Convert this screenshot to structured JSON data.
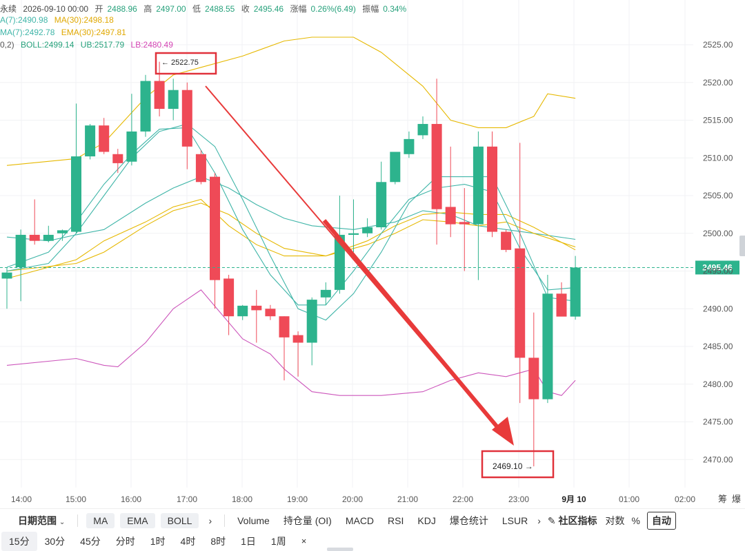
{
  "info": {
    "title": "永续",
    "date": "2026-09-10 00:00",
    "open_label": "开",
    "open": "2488.96",
    "high_label": "高",
    "high": "2497.00",
    "low_label": "低",
    "low": "2488.55",
    "close_label": "收",
    "close": "2495.46",
    "change_label": "涨幅",
    "change": "0.26%(6.49)",
    "amp_label": "振幅",
    "amp": "0.34%",
    "ma7": "A(7):2490.98",
    "ma30": "MA(30):2498.18",
    "ema7": "MA(7):2492.78",
    "ema30": "EMA(30):2497.81",
    "boll_prefix": "0,2)",
    "boll": "BOLL:2499.14",
    "ub": "UB:2517.79",
    "lb": "LB:2480.49"
  },
  "annotations": {
    "high": "← 2522.75",
    "low": "2469.10 →"
  },
  "current_price": "2495.46",
  "chart_data": {
    "type": "candlestick",
    "y_range": [
      2466,
      2528
    ],
    "y_ticks": [
      "2525.00",
      "2520.00",
      "2515.00",
      "2510.00",
      "2505.00",
      "2500.00",
      "2495.00",
      "2490.00",
      "2485.00",
      "2480.00",
      "2475.00",
      "2470.00"
    ],
    "x_ticks": [
      "14:00",
      "15:00",
      "16:00",
      "17:00",
      "18:00",
      "19:00",
      "20:00",
      "21:00",
      "22:00",
      "23:00",
      "9月 10",
      "01:00",
      "02:00"
    ],
    "candles": [
      {
        "t": "13:45",
        "o": 2494.0,
        "h": 2495.5,
        "l": 2490.0,
        "c": 2494.8
      },
      {
        "t": "14:00",
        "o": 2495.5,
        "h": 2500.5,
        "l": 2491.0,
        "c": 2499.8
      },
      {
        "t": "14:15",
        "o": 2499.8,
        "h": 2504.5,
        "l": 2498.5,
        "c": 2499.0
      },
      {
        "t": "14:30",
        "o": 2499.0,
        "h": 2501.0,
        "l": 2498.8,
        "c": 2499.8
      },
      {
        "t": "14:45",
        "o": 2500.0,
        "h": 2500.5,
        "l": 2499.0,
        "c": 2500.4
      },
      {
        "t": "15:00",
        "o": 2500.2,
        "h": 2517.2,
        "l": 2500.0,
        "c": 2510.2
      },
      {
        "t": "15:15",
        "o": 2510.2,
        "h": 2514.5,
        "l": 2509.8,
        "c": 2514.3
      },
      {
        "t": "15:30",
        "o": 2514.3,
        "h": 2515.3,
        "l": 2510.5,
        "c": 2510.8
      },
      {
        "t": "15:45",
        "o": 2510.5,
        "h": 2511.2,
        "l": 2508.0,
        "c": 2509.3
      },
      {
        "t": "16:00",
        "o": 2509.5,
        "h": 2518.5,
        "l": 2509.0,
        "c": 2513.5
      },
      {
        "t": "16:15",
        "o": 2513.5,
        "h": 2521.0,
        "l": 2512.8,
        "c": 2520.2
      },
      {
        "t": "16:30",
        "o": 2520.2,
        "h": 2522.75,
        "l": 2515.5,
        "c": 2516.5
      },
      {
        "t": "16:45",
        "o": 2516.5,
        "h": 2520.5,
        "l": 2515.0,
        "c": 2519.0
      },
      {
        "t": "17:00",
        "o": 2519.0,
        "h": 2520.0,
        "l": 2508.5,
        "c": 2511.5
      },
      {
        "t": "17:15",
        "o": 2510.5,
        "h": 2511.0,
        "l": 2506.5,
        "c": 2506.8
      },
      {
        "t": "17:30",
        "o": 2507.5,
        "h": 2508.0,
        "l": 2490.0,
        "c": 2493.8
      },
      {
        "t": "17:45",
        "o": 2494.0,
        "h": 2494.5,
        "l": 2486.5,
        "c": 2489.0
      },
      {
        "t": "18:00",
        "o": 2489.0,
        "h": 2490.5,
        "l": 2488.5,
        "c": 2490.4
      },
      {
        "t": "18:15",
        "o": 2490.4,
        "h": 2492.5,
        "l": 2485.5,
        "c": 2489.8
      },
      {
        "t": "18:30",
        "o": 2490.0,
        "h": 2490.5,
        "l": 2488.5,
        "c": 2489.0
      },
      {
        "t": "18:45",
        "o": 2489.0,
        "h": 2489.0,
        "l": 2480.5,
        "c": 2486.2
      },
      {
        "t": "19:00",
        "o": 2486.5,
        "h": 2487.0,
        "l": 2481.0,
        "c": 2485.5
      },
      {
        "t": "19:15",
        "o": 2485.5,
        "h": 2491.5,
        "l": 2482.5,
        "c": 2491.2
      },
      {
        "t": "19:30",
        "o": 2491.5,
        "h": 2493.5,
        "l": 2490.5,
        "c": 2492.5
      },
      {
        "t": "19:45",
        "o": 2492.5,
        "h": 2505.0,
        "l": 2492.0,
        "c": 2499.8
      },
      {
        "t": "20:00",
        "o": 2499.8,
        "h": 2504.5,
        "l": 2497.5,
        "c": 2500.0
      },
      {
        "t": "20:15",
        "o": 2500.0,
        "h": 2502.0,
        "l": 2499.5,
        "c": 2500.8
      },
      {
        "t": "20:30",
        "o": 2500.8,
        "h": 2509.5,
        "l": 2500.5,
        "c": 2506.8
      },
      {
        "t": "20:45",
        "o": 2506.8,
        "h": 2510.5,
        "l": 2506.5,
        "c": 2510.8
      },
      {
        "t": "21:00",
        "o": 2510.5,
        "h": 2513.5,
        "l": 2510.0,
        "c": 2512.5
      },
      {
        "t": "21:15",
        "o": 2513.0,
        "h": 2515.5,
        "l": 2512.5,
        "c": 2514.5
      },
      {
        "t": "21:30",
        "o": 2514.5,
        "h": 2520.5,
        "l": 2498.5,
        "c": 2503.2
      },
      {
        "t": "21:45",
        "o": 2503.5,
        "h": 2511.5,
        "l": 2499.5,
        "c": 2501.2
      },
      {
        "t": "22:00",
        "o": 2501.5,
        "h": 2506.0,
        "l": 2495.0,
        "c": 2501.2
      },
      {
        "t": "22:15",
        "o": 2501.2,
        "h": 2513.5,
        "l": 2493.8,
        "c": 2511.5
      },
      {
        "t": "22:30",
        "o": 2511.5,
        "h": 2513.5,
        "l": 2499.5,
        "c": 2500.2
      },
      {
        "t": "22:45",
        "o": 2500.2,
        "h": 2500.5,
        "l": 2497.5,
        "c": 2497.8
      },
      {
        "t": "23:00",
        "o": 2498.0,
        "h": 2512.0,
        "l": 2477.5,
        "c": 2483.5
      },
      {
        "t": "23:15",
        "o": 2483.5,
        "h": 2489.5,
        "l": 2469.1,
        "c": 2478.0
      },
      {
        "t": "23:30",
        "o": 2478.0,
        "h": 2494.5,
        "l": 2477.5,
        "c": 2492.0
      },
      {
        "t": "23:45",
        "o": 2492.0,
        "h": 2493.5,
        "l": 2489.0,
        "c": 2488.96
      },
      {
        "t": "00:00",
        "o": 2488.96,
        "h": 2497.0,
        "l": 2488.55,
        "c": 2495.46
      }
    ],
    "lines": {
      "ub": {
        "color": "#e6b800",
        "points": [
          [
            0,
            2509.0
          ],
          [
            5,
            2509.9
          ],
          [
            7,
            2512.0
          ],
          [
            10,
            2518.0
          ],
          [
            12,
            2521.0
          ],
          [
            14,
            2522.0
          ],
          [
            17,
            2523.5
          ],
          [
            20,
            2525.5
          ],
          [
            22,
            2526.0
          ],
          [
            25,
            2526.0
          ],
          [
            27,
            2524.0
          ],
          [
            30,
            2519.5
          ],
          [
            32,
            2515.0
          ],
          [
            34,
            2514.0
          ],
          [
            36,
            2514.0
          ],
          [
            38,
            2515.5
          ],
          [
            39,
            2518.5
          ],
          [
            41,
            2517.9
          ]
        ]
      },
      "lb": {
        "color": "#cc55bb",
        "points": [
          [
            0,
            2482.5
          ],
          [
            5,
            2483.4
          ],
          [
            7,
            2482.5
          ],
          [
            8,
            2482.3
          ],
          [
            10,
            2485.5
          ],
          [
            12,
            2490.0
          ],
          [
            14,
            2492.5
          ],
          [
            17,
            2486.0
          ],
          [
            19,
            2484.0
          ],
          [
            20,
            2482.0
          ],
          [
            22,
            2479.0
          ],
          [
            24,
            2478.5
          ],
          [
            27,
            2478.5
          ],
          [
            30,
            2479.0
          ],
          [
            32,
            2480.5
          ],
          [
            34,
            2481.5
          ],
          [
            36,
            2481.0
          ],
          [
            38,
            2482.0
          ],
          [
            39,
            2479.0
          ],
          [
            40,
            2478.5
          ],
          [
            41,
            2480.5
          ]
        ]
      },
      "boll": {
        "color": "#3fb5a8",
        "points": [
          [
            0,
            2499.5
          ],
          [
            3,
            2499.0
          ],
          [
            5,
            2499.8
          ],
          [
            7,
            2500.5
          ],
          [
            10,
            2504.0
          ],
          [
            12,
            2506.0
          ],
          [
            14,
            2507.5
          ],
          [
            16,
            2506.0
          ],
          [
            18,
            2503.8
          ],
          [
            20,
            2502.0
          ],
          [
            22,
            2501.0
          ],
          [
            25,
            2500.5
          ],
          [
            28,
            2501.5
          ],
          [
            30,
            2503.0
          ],
          [
            32,
            2502.5
          ],
          [
            34,
            2501.0
          ],
          [
            36,
            2500.5
          ],
          [
            38,
            2500.0
          ],
          [
            41,
            2499.2
          ]
        ]
      },
      "ma30": {
        "color": "#e6b800",
        "points": [
          [
            0,
            2495.0
          ],
          [
            5,
            2496.0
          ],
          [
            7,
            2497.5
          ],
          [
            10,
            2501.0
          ],
          [
            12,
            2503.0
          ],
          [
            14,
            2504.0
          ],
          [
            16,
            2502.5
          ],
          [
            18,
            2500.0
          ],
          [
            20,
            2498.0
          ],
          [
            23,
            2497.0
          ],
          [
            26,
            2498.5
          ],
          [
            28,
            2500.0
          ],
          [
            30,
            2501.8
          ],
          [
            32,
            2501.5
          ],
          [
            34,
            2501.0
          ],
          [
            36,
            2501.5
          ],
          [
            38,
            2500.0
          ],
          [
            41,
            2498.2
          ]
        ]
      },
      "ema30": {
        "color": "#e6b800",
        "points": [
          [
            0,
            2494.0
          ],
          [
            5,
            2496.5
          ],
          [
            7,
            2499.0
          ],
          [
            10,
            2501.5
          ],
          [
            12,
            2503.5
          ],
          [
            14,
            2504.5
          ],
          [
            16,
            2501.0
          ],
          [
            18,
            2498.5
          ],
          [
            20,
            2497.0
          ],
          [
            23,
            2497.0
          ],
          [
            26,
            2499.0
          ],
          [
            28,
            2501.0
          ],
          [
            30,
            2502.5
          ],
          [
            32,
            2502.8
          ],
          [
            34,
            2502.5
          ],
          [
            36,
            2502.5
          ],
          [
            38,
            2500.8
          ],
          [
            41,
            2497.8
          ]
        ]
      },
      "ma7": {
        "color": "#3fb5a8",
        "points": [
          [
            0,
            2495.0
          ],
          [
            3,
            2496.0
          ],
          [
            5,
            2500.0
          ],
          [
            7,
            2505.0
          ],
          [
            9,
            2510.0
          ],
          [
            11,
            2513.5
          ],
          [
            13,
            2514.5
          ],
          [
            15,
            2511.5
          ],
          [
            17,
            2504.5
          ],
          [
            19,
            2497.0
          ],
          [
            21,
            2490.0
          ],
          [
            23,
            2488.5
          ],
          [
            25,
            2492.0
          ],
          [
            27,
            2497.5
          ],
          [
            29,
            2504.0
          ],
          [
            31,
            2507.5
          ],
          [
            33,
            2507.5
          ],
          [
            35,
            2507.5
          ],
          [
            37,
            2500.0
          ],
          [
            39,
            2491.5
          ],
          [
            41,
            2491.0
          ]
        ]
      },
      "ema7": {
        "color": "#3fb5a8",
        "points": [
          [
            0,
            2495.5
          ],
          [
            3,
            2497.5
          ],
          [
            5,
            2501.5
          ],
          [
            7,
            2506.5
          ],
          [
            9,
            2510.5
          ],
          [
            11,
            2513.8
          ],
          [
            13,
            2514.0
          ],
          [
            15,
            2508.0
          ],
          [
            17,
            2500.5
          ],
          [
            19,
            2494.5
          ],
          [
            21,
            2490.5
          ],
          [
            23,
            2490.5
          ],
          [
            25,
            2495.0
          ],
          [
            27,
            2500.0
          ],
          [
            29,
            2504.5
          ],
          [
            31,
            2506.0
          ],
          [
            33,
            2506.5
          ],
          [
            35,
            2505.5
          ],
          [
            37,
            2498.0
          ],
          [
            39,
            2492.5
          ],
          [
            41,
            2492.8
          ]
        ]
      }
    }
  },
  "toolbar": {
    "date_range": "日期范围",
    "ma": "MA",
    "ema": "EMA",
    "boll": "BOLL",
    "more1": "›",
    "volume": "Volume",
    "oi": "持仓量 (OI)",
    "macd": "MACD",
    "rsi": "RSI",
    "kdj": "KDJ",
    "liq": "爆仓统计",
    "lsur": "LSUR",
    "more2": "›",
    "community": "社区指标",
    "log": "对数",
    "percent": "%",
    "auto": "自动",
    "chou": "筹",
    "bao": "爆"
  },
  "timeframes": {
    "tf_15m": "15分",
    "tf_30m": "30分",
    "tf_45m": "45分",
    "tf_time": "分时",
    "tf_1h": "1时",
    "tf_4h": "4时",
    "tf_8h": "8时",
    "tf_1d": "1日",
    "tf_1w": "1周",
    "close": "×"
  },
  "colors": {
    "up": "#2db38d",
    "down": "#ef4a57",
    "accent": "#e84a4a"
  }
}
